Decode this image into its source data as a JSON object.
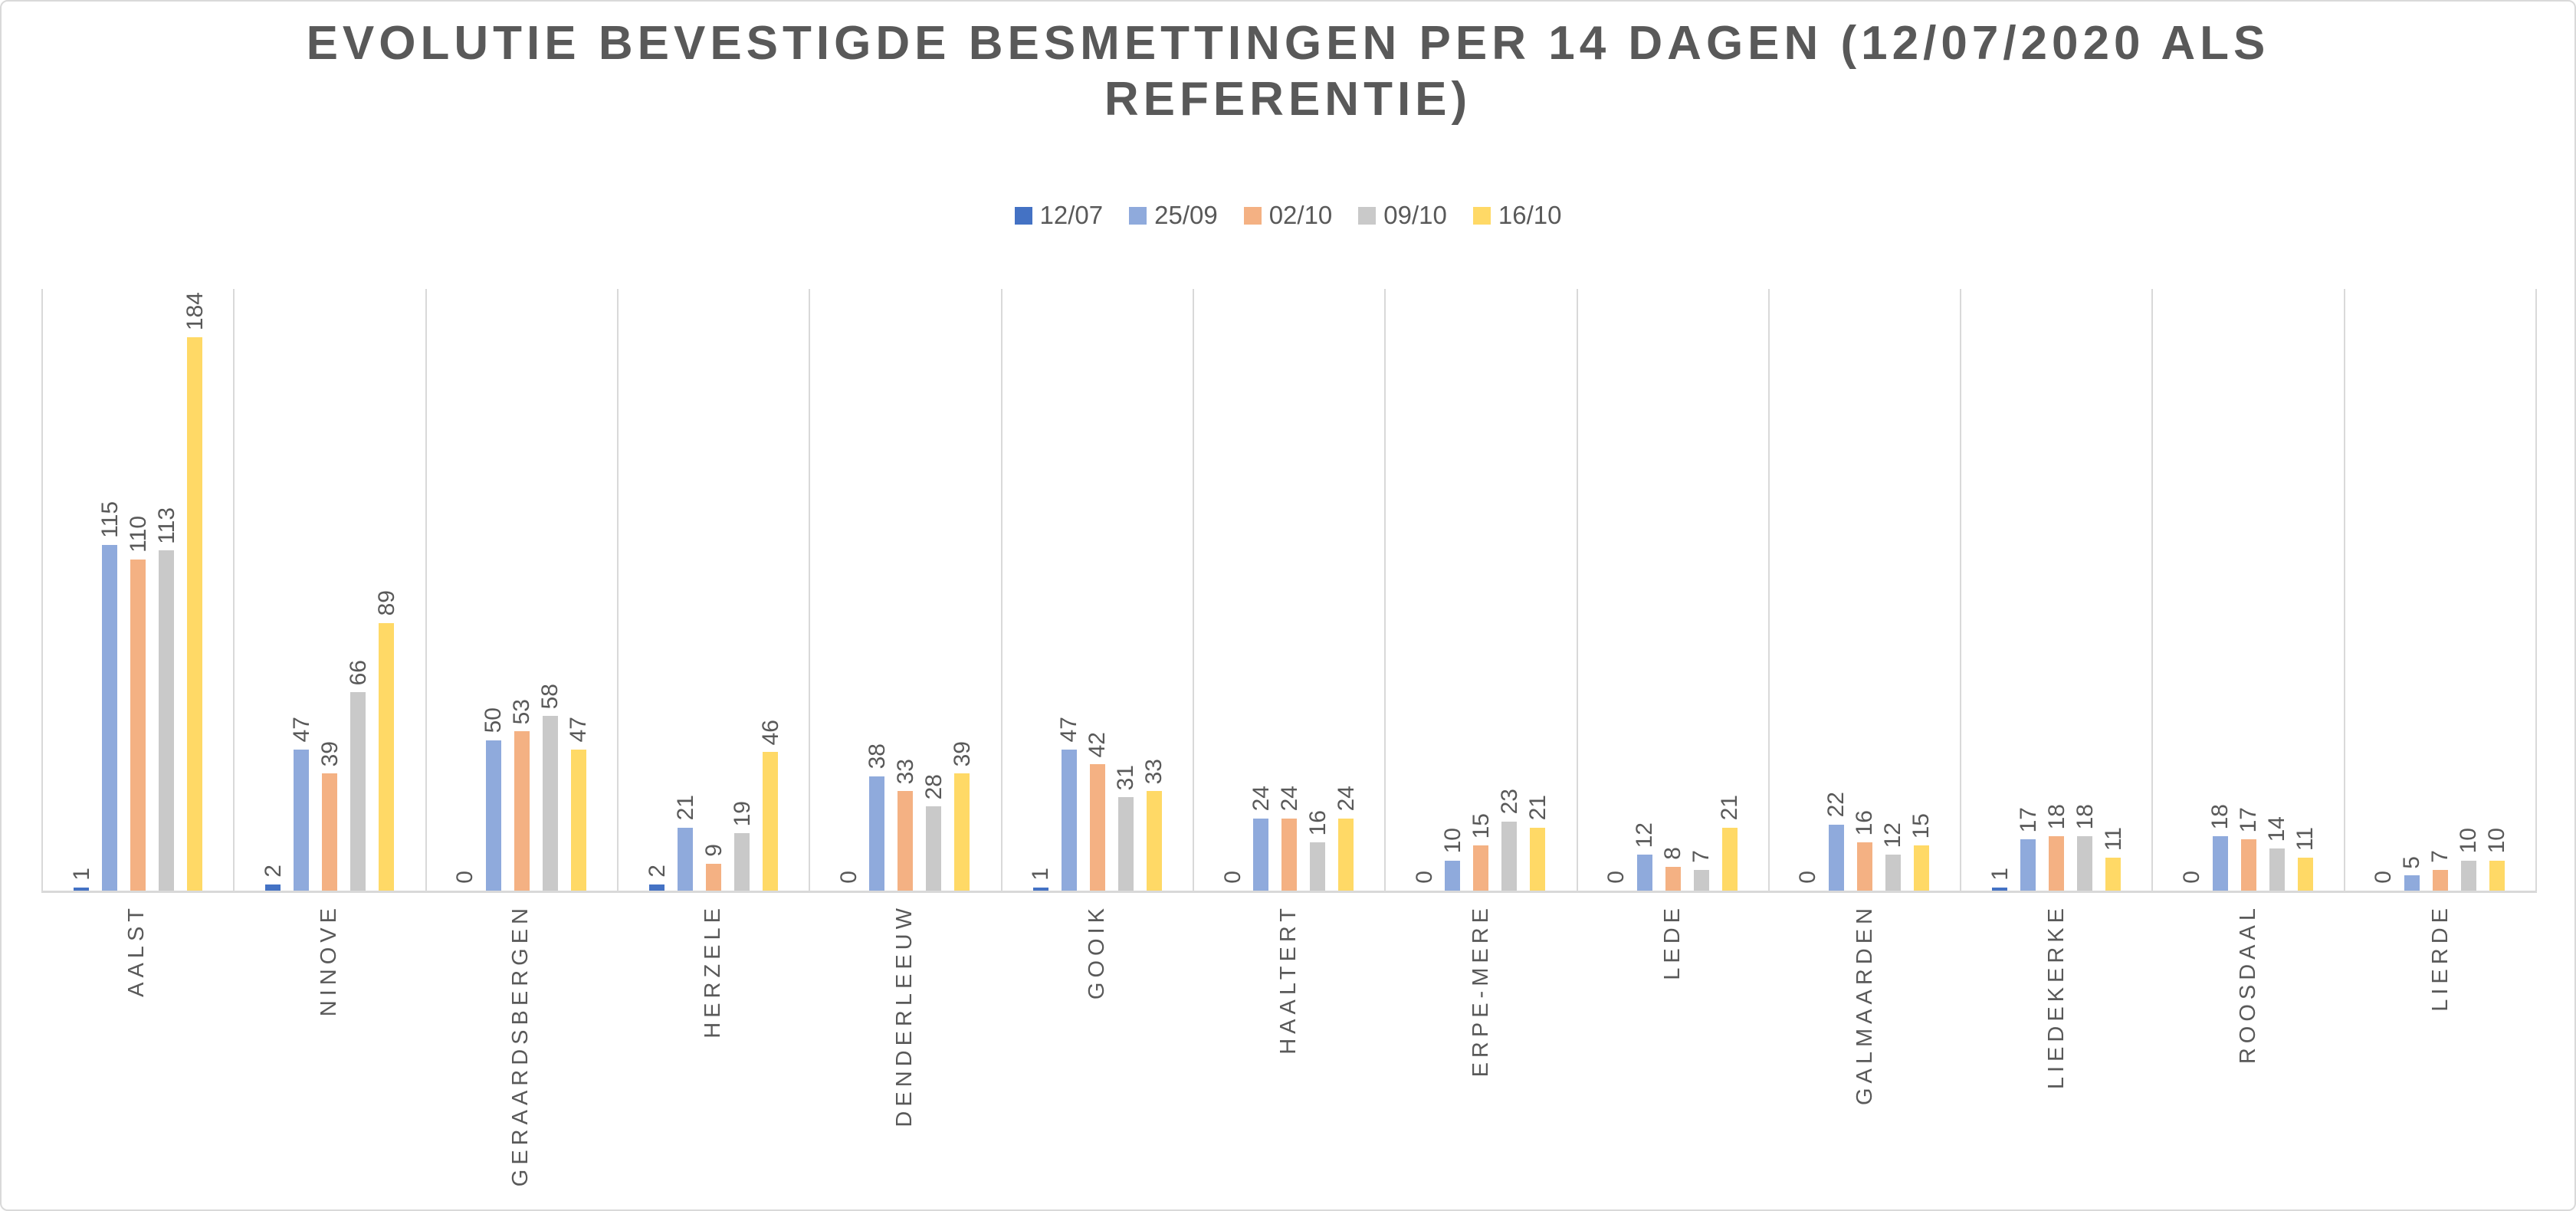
{
  "title": "EVOLUTIE BEVESTIGDE BESMETTINGEN PER 14 DAGEN (12/07/2020 ALS REFERENTIE)",
  "colors": {
    "text_gray": "#595959",
    "gridline": "#d9d9d9",
    "series_12_07": "#4472C4",
    "series_25_09": "#8FAADC",
    "series_02_10": "#F4B183",
    "series_09_10": "#C9C9C9",
    "series_16_10": "#FFD966"
  },
  "chart_data": {
    "type": "bar",
    "title": "EVOLUTIE BEVESTIGDE BESMETTINGEN PER 14 DAGEN (12/07/2020 ALS REFERENTIE)",
    "legend_position": "top",
    "grid": "vertical category separators only",
    "data_labels": "rotated 90deg above bars",
    "xlabel": "",
    "ylabel": "",
    "ylim": [
      0,
      200
    ],
    "categories": [
      "AALST",
      "NINOVE",
      "GERAARDSBERGEN",
      "HERZELE",
      "DENDERLEEUW",
      "GOOIK",
      "HAALTERT",
      "ERPE-MERE",
      "LEDE",
      "GALMAARDEN",
      "LIEDEKERKE",
      "ROOSDAAL",
      "LIERDE"
    ],
    "series": [
      {
        "name": "12/07",
        "color": "#4472C4",
        "values": [
          1,
          2,
          0,
          2,
          0,
          1,
          0,
          0,
          0,
          0,
          1,
          0,
          0
        ]
      },
      {
        "name": "25/09",
        "color": "#8FAADC",
        "values": [
          115,
          47,
          50,
          21,
          38,
          47,
          24,
          10,
          12,
          22,
          17,
          18,
          5
        ]
      },
      {
        "name": "02/10",
        "color": "#F4B183",
        "values": [
          110,
          39,
          53,
          9,
          33,
          42,
          24,
          15,
          8,
          16,
          18,
          17,
          7
        ]
      },
      {
        "name": "09/10",
        "color": "#C9C9C9",
        "values": [
          113,
          66,
          58,
          19,
          28,
          31,
          16,
          23,
          7,
          12,
          18,
          14,
          10
        ]
      },
      {
        "name": "16/10",
        "color": "#FFD966",
        "values": [
          184,
          89,
          47,
          46,
          39,
          33,
          24,
          21,
          21,
          15,
          11,
          11,
          10
        ]
      }
    ]
  }
}
